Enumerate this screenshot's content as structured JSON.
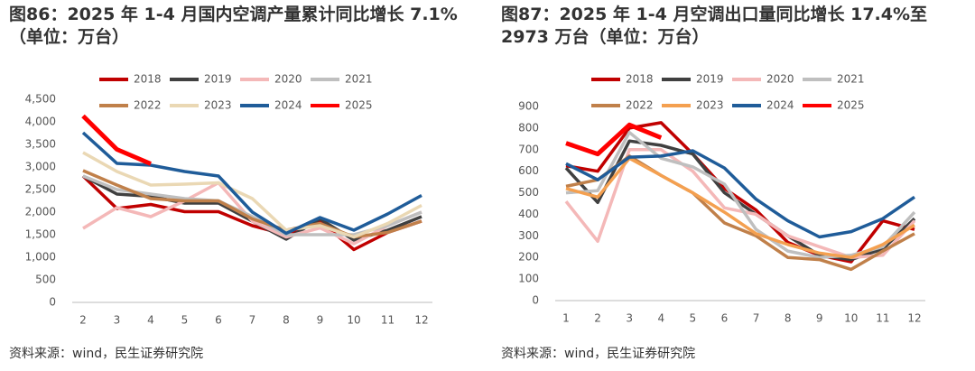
{
  "chart_data": [
    {
      "type": "line",
      "title": "图86：2025 年 1-4 月国内空调产量累计同比增长 7.1%（单位：万台）",
      "source": "资料来源：wind，民生证券研究院",
      "categories": [
        "2",
        "3",
        "4",
        "5",
        "6",
        "7",
        "8",
        "9",
        "10",
        "11",
        "12"
      ],
      "ylim": [
        0,
        4500
      ],
      "yticks": [
        0,
        500,
        {
          "value": 1000,
          "label": "1,000"
        },
        {
          "value": 1500,
          "label": "1,500"
        },
        {
          "value": 2000,
          "label": "2,000"
        },
        {
          "value": 2500,
          "label": "2,500"
        },
        {
          "value": 3000,
          "label": "3,000"
        },
        {
          "value": 3500,
          "label": "3,500"
        },
        {
          "value": 4000,
          "label": "4,000"
        },
        {
          "value": 4500,
          "label": "4,500"
        }
      ],
      "series": [
        {
          "name": "2018",
          "color": "#c00000",
          "values": [
            2800,
            2080,
            2170,
            2010,
            2010,
            1700,
            1500,
            1800,
            1170,
            1550,
            1800
          ]
        },
        {
          "name": "2019",
          "color": "#404040",
          "values": [
            2800,
            2400,
            2350,
            2200,
            2200,
            1800,
            1400,
            1850,
            1380,
            1600,
            1900
          ]
        },
        {
          "name": "2020",
          "color": "#f4b8b8",
          "values": [
            1640,
            2100,
            1900,
            2250,
            2650,
            1800,
            1450,
            1650,
            1300,
            1700,
            2000
          ]
        },
        {
          "name": "2021",
          "color": "#bfbfbf",
          "values": [
            2800,
            2500,
            2400,
            2300,
            2250,
            1900,
            1500,
            1500,
            1500,
            1700,
            2000
          ]
        },
        {
          "name": "2022",
          "color": "#c0804a",
          "values": [
            2920,
            2600,
            2300,
            2250,
            2250,
            1850,
            1600,
            1750,
            1450,
            1550,
            1800
          ]
        },
        {
          "name": "2023",
          "color": "#ead8b4",
          "values": [
            3320,
            2900,
            2600,
            2620,
            2650,
            2300,
            1600,
            1700,
            1450,
            1750,
            2150
          ]
        },
        {
          "name": "2024",
          "color": "#1f5c99",
          "values": [
            3760,
            3080,
            3040,
            2900,
            2800,
            2000,
            1530,
            1880,
            1600,
            1960,
            2370
          ]
        },
        {
          "name": "2025",
          "color": "#ff0000",
          "values": [
            4130,
            3390,
            3070,
            null,
            null,
            null,
            null,
            null,
            null,
            null,
            null
          ]
        }
      ]
    },
    {
      "type": "line",
      "title": "图87：2025 年 1-4 月空调出口量同比增长 17.4%至 2973 万台（单位：万台）",
      "source": "资料来源：wind，民生证券研究院",
      "categories": [
        "1",
        "2",
        "3",
        "4",
        "5",
        "6",
        "7",
        "8",
        "9",
        "10",
        "11",
        "12"
      ],
      "ylim": [
        0,
        900
      ],
      "yticks": [
        0,
        100,
        200,
        300,
        400,
        500,
        600,
        700,
        800,
        900
      ],
      "series": [
        {
          "name": "2018",
          "color": "#c00000",
          "values": [
            625,
            600,
            800,
            825,
            680,
            520,
            420,
            270,
            210,
            180,
            370,
            330
          ]
        },
        {
          "name": "2019",
          "color": "#404040",
          "values": [
            615,
            455,
            740,
            720,
            680,
            500,
            400,
            300,
            210,
            190,
            240,
            380
          ]
        },
        {
          "name": "2020",
          "color": "#f4b8b8",
          "values": [
            460,
            275,
            700,
            700,
            600,
            430,
            400,
            300,
            250,
            200,
            210,
            370
          ]
        },
        {
          "name": "2021",
          "color": "#bfbfbf",
          "values": [
            500,
            510,
            780,
            660,
            620,
            540,
            330,
            230,
            200,
            210,
            250,
            410
          ]
        },
        {
          "name": "2022",
          "color": "#c0804a",
          "values": [
            530,
            560,
            670,
            580,
            500,
            360,
            300,
            200,
            190,
            145,
            230,
            310
          ]
        },
        {
          "name": "2023",
          "color": "#f4a050",
          "values": [
            520,
            480,
            660,
            580,
            500,
            410,
            310,
            260,
            220,
            200,
            260,
            350
          ]
        },
        {
          "name": "2024",
          "color": "#1f5c99",
          "values": [
            635,
            560,
            665,
            670,
            695,
            615,
            470,
            370,
            295,
            320,
            380,
            480
          ]
        },
        {
          "name": "2025",
          "color": "#ff0000",
          "values": [
            730,
            680,
            815,
            755,
            null,
            null,
            null,
            null,
            null,
            null,
            null,
            null
          ]
        }
      ]
    }
  ]
}
